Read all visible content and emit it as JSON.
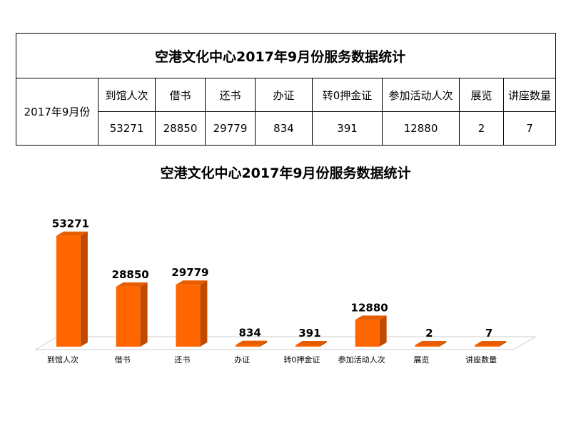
{
  "table": {
    "title": "空港文化中心2017年9月份服务数据统计",
    "period": "2017年9月份",
    "headers": [
      "到馆人次",
      "借书",
      "还书",
      "办证",
      "转0押金证",
      "参加活动人次",
      "展览",
      "讲座数量"
    ],
    "values": [
      "53271",
      "28850",
      "29779",
      "834",
      "391",
      "12880",
      "2",
      "7"
    ]
  },
  "chart_data": {
    "type": "bar",
    "title": "空港文化中心2017年9月份服务数据统计",
    "categories": [
      "到馆人次",
      "借书",
      "还书",
      "办证",
      "转0押金证",
      "参加活动人次",
      "展览",
      "讲座数量"
    ],
    "values": [
      53271,
      28850,
      29779,
      834,
      391,
      12880,
      2,
      7
    ],
    "data_labels": [
      "53271",
      "28850",
      "29779",
      "834",
      "391",
      "12880",
      "2",
      "7"
    ],
    "xlabel": "",
    "ylabel": "",
    "ylim": [
      0,
      60000
    ],
    "grid": false,
    "legend": "none",
    "style": "3d",
    "colors": {
      "bar_front": "#FF6600",
      "bar_side": "#C04A00",
      "bar_top": "#E85C00",
      "floor": "#ffffff",
      "floor_edge": "#cccccc"
    }
  }
}
